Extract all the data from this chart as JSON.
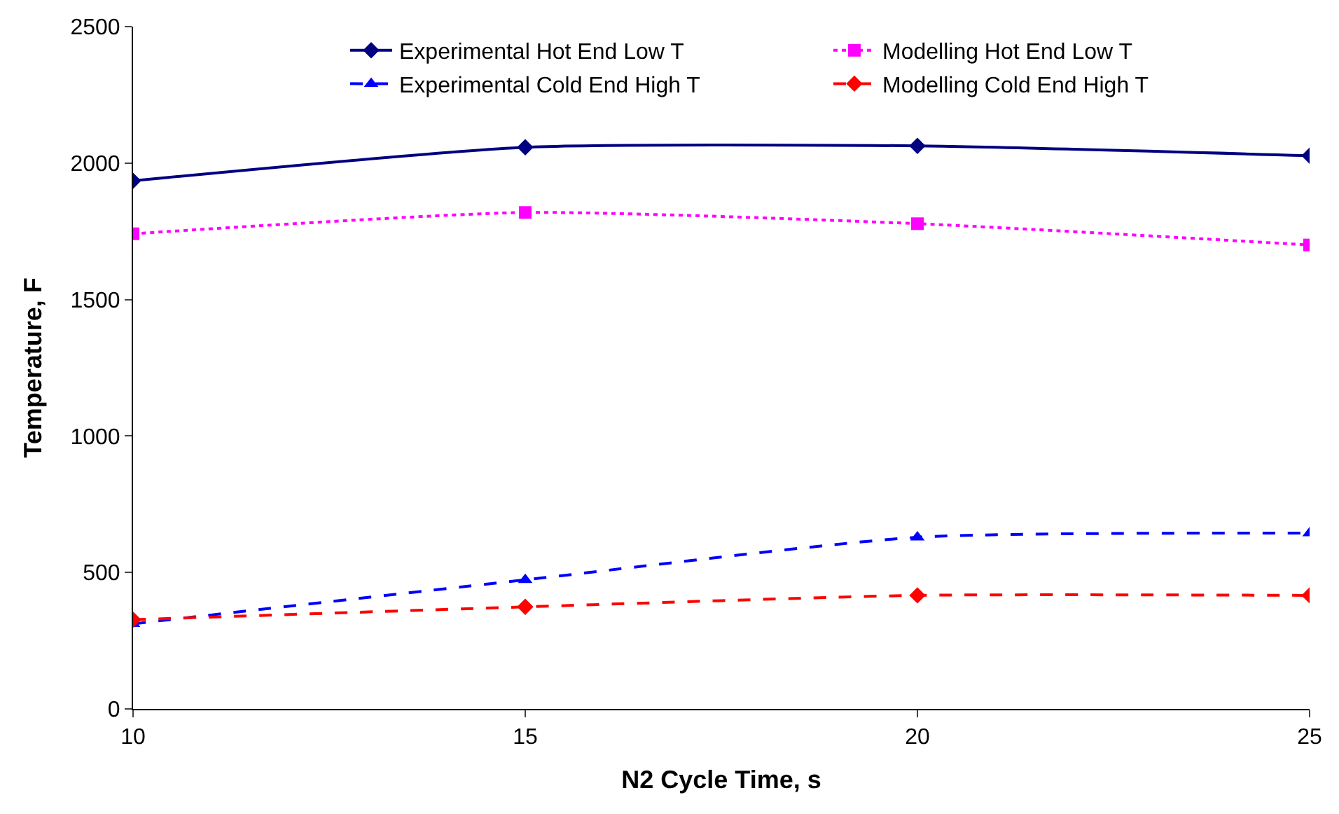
{
  "chart_data": {
    "type": "line",
    "xlabel": "N2 Cycle Time, s",
    "ylabel": "Temperature, F",
    "x": [
      10,
      15,
      20,
      25
    ],
    "xlim": [
      10,
      25
    ],
    "xticks": [
      10,
      15,
      20,
      25
    ],
    "ylim": [
      0,
      2500
    ],
    "yticks": [
      0,
      500,
      1000,
      1500,
      2000,
      2500
    ],
    "grid": false,
    "legend": "top right",
    "series": [
      {
        "name": "Experimental Hot End Low T",
        "color": "#000080",
        "values": [
          1935,
          2058,
          2063,
          2027
        ],
        "marker": "diamond",
        "line_style": "solid"
      },
      {
        "name": "Modelling Hot End Low T",
        "color": "#ff00ff",
        "values": [
          1741,
          1819,
          1778,
          1700
        ],
        "marker": "square",
        "line_style": "dotted"
      },
      {
        "name": "Experimental Cold End High T",
        "color": "#0000ff",
        "values": [
          312,
          473,
          629,
          644
        ],
        "marker": "triangle",
        "line_style": "dashed"
      },
      {
        "name": "Modelling Cold End High T",
        "color": "#ff0000",
        "values": [
          327,
          374,
          416,
          416
        ],
        "marker": "diamond",
        "line_style": "dashed"
      }
    ]
  }
}
